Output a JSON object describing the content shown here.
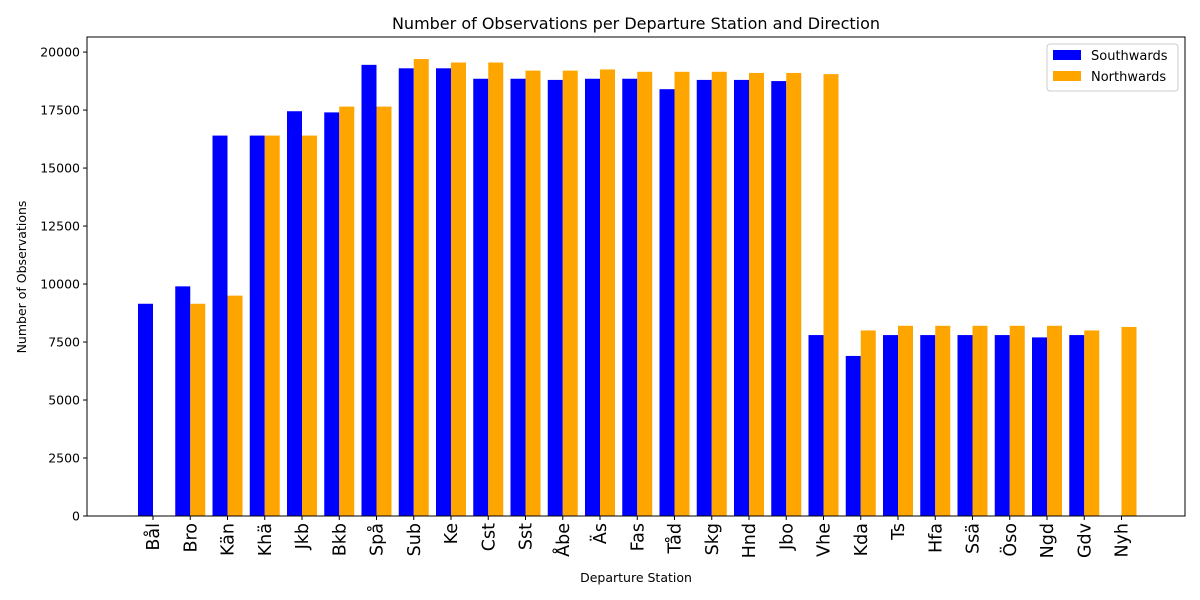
{
  "chart_data": {
    "type": "bar",
    "title": "Number of Observations per Departure Station and Direction",
    "xlabel": "Departure Station",
    "ylabel": "Number of Observations",
    "ylim": [
      0,
      20650
    ],
    "yticks": [
      0,
      2500,
      5000,
      7500,
      10000,
      12500,
      15000,
      17500,
      20000
    ],
    "legend_position": "top-right",
    "grid": false,
    "categories": [
      "Bål",
      "Bro",
      "Kän",
      "Khä",
      "Jkb",
      "Bkb",
      "Spå",
      "Sub",
      "Ke",
      "Cst",
      "Sst",
      "Åbe",
      "Äs",
      "Fas",
      "Tåd",
      "Skg",
      "Hnd",
      "Jbo",
      "Vhe",
      "Kda",
      "Ts",
      "Hfa",
      "Ssä",
      "Öso",
      "Ngd",
      "Gdv",
      "Nyh"
    ],
    "series": [
      {
        "name": "Southwards",
        "color": "#0000ff",
        "values": [
          9150,
          9900,
          16400,
          16400,
          17450,
          17400,
          19450,
          19300,
          19300,
          18850,
          18850,
          18800,
          18850,
          18850,
          18400,
          18800,
          18800,
          18750,
          7800,
          6900,
          7800,
          7800,
          7800,
          7800,
          7700,
          7800,
          null
        ]
      },
      {
        "name": "Northwards",
        "color": "#ffa500",
        "values": [
          null,
          9150,
          9500,
          16400,
          16400,
          17650,
          17650,
          19700,
          19550,
          19550,
          19200,
          19200,
          19250,
          19150,
          19150,
          19150,
          19100,
          19100,
          19050,
          8000,
          8200,
          8200,
          8200,
          8200,
          8200,
          8000,
          8150
        ]
      }
    ]
  }
}
